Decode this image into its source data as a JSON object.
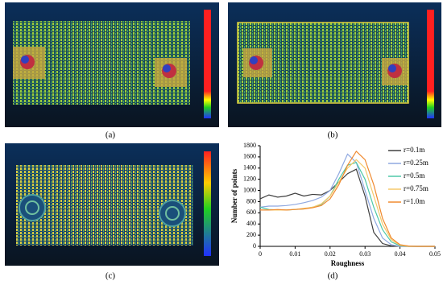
{
  "panel_labels": [
    "(a)",
    "(b)",
    "(c)",
    "(d)"
  ],
  "chart_data": {
    "type": "line",
    "x_label": "Roughness",
    "y_label": "Number of points",
    "x": [
      0,
      0.0025,
      0.005,
      0.0075,
      0.01,
      0.0125,
      0.015,
      0.0175,
      0.02,
      0.0225,
      0.025,
      0.0275,
      0.03,
      0.0325,
      0.035,
      0.0375,
      0.04,
      0.0425,
      0.045,
      0.0475,
      0.05
    ],
    "series": [
      {
        "name": "r=0.1m",
        "color": "#404040",
        "values": [
          850,
          920,
          880,
          900,
          950,
          900,
          930,
          920,
          1000,
          1150,
          1300,
          1380,
          900,
          250,
          50,
          10,
          0,
          0,
          0,
          0,
          0
        ]
      },
      {
        "name": "r=0.25m",
        "color": "#8fa8e0",
        "values": [
          700,
          720,
          720,
          730,
          750,
          780,
          820,
          880,
          1000,
          1300,
          1650,
          1500,
          1000,
          500,
          150,
          30,
          0,
          0,
          0,
          0,
          0
        ]
      },
      {
        "name": "r=0.5m",
        "color": "#4fc9a8",
        "values": [
          700,
          660,
          650,
          650,
          660,
          670,
          700,
          750,
          900,
          1200,
          1450,
          1500,
          1200,
          700,
          300,
          80,
          10,
          0,
          0,
          0,
          0
        ]
      },
      {
        "name": "r=0.75m",
        "color": "#f5c96a",
        "values": [
          650,
          650,
          650,
          650,
          660,
          680,
          700,
          760,
          900,
          1150,
          1400,
          1550,
          1400,
          900,
          400,
          120,
          20,
          0,
          0,
          0,
          0
        ]
      },
      {
        "name": "r=1.0m",
        "color": "#f08a30",
        "values": [
          650,
          650,
          660,
          650,
          660,
          670,
          690,
          730,
          850,
          1100,
          1450,
          1700,
          1550,
          1100,
          500,
          150,
          30,
          5,
          0,
          0,
          0
        ]
      }
    ],
    "xlim": [
      0,
      0.05
    ],
    "xticks": [
      0,
      0.01,
      0.02,
      0.03,
      0.04,
      0.05
    ],
    "ylim": [
      0,
      1800
    ],
    "yticks": [
      0,
      200,
      400,
      600,
      800,
      1000,
      1200,
      1400,
      1600,
      1800
    ],
    "legend": "upper-right"
  }
}
